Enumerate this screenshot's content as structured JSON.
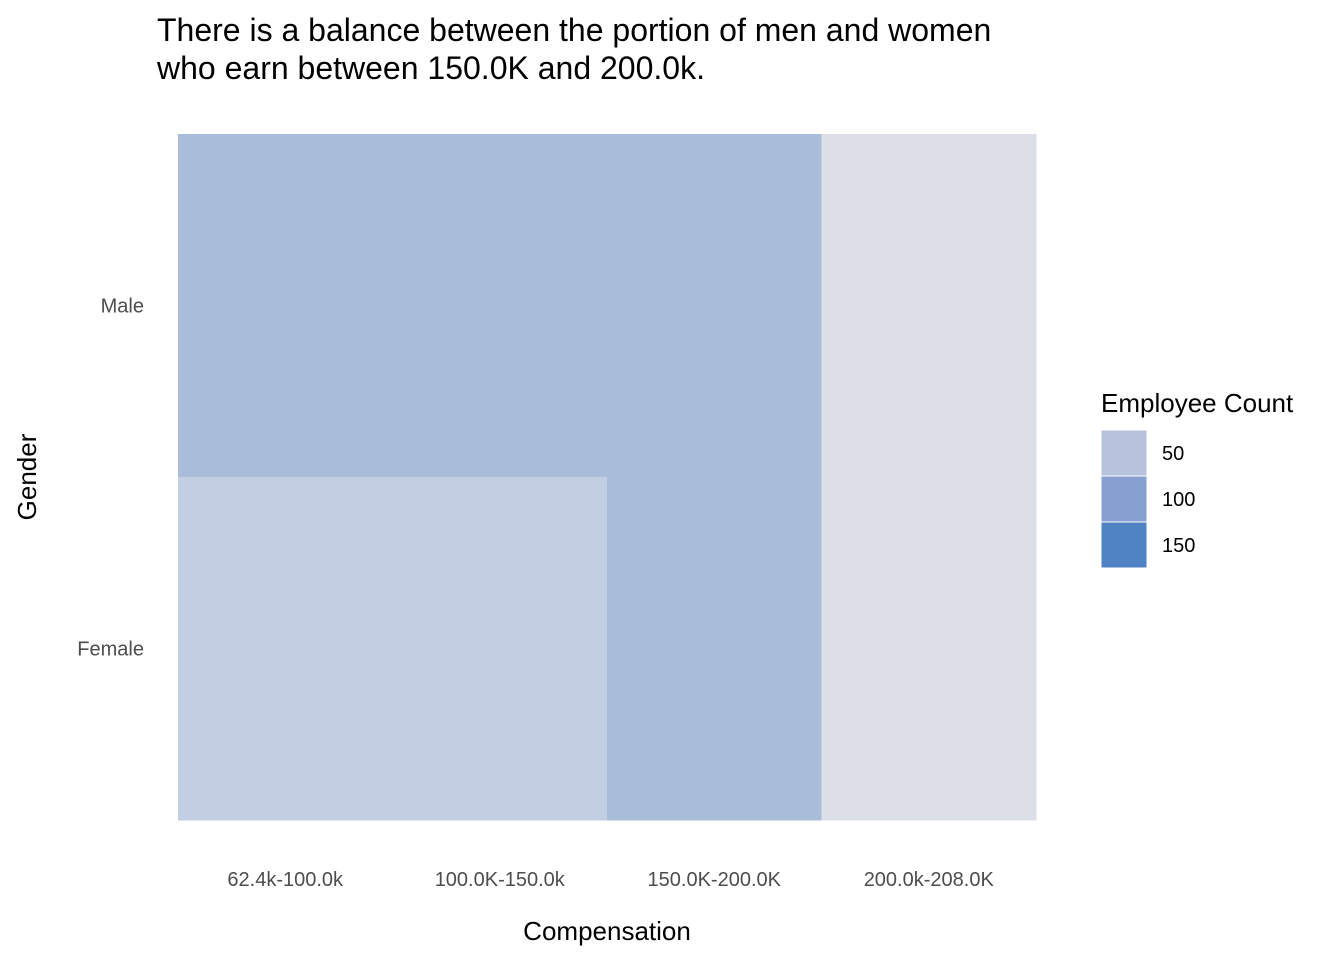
{
  "chart_data": {
    "type": "heatmap",
    "title": "There is a balance between the portion of men and women",
    "title_line2": "who earn between 150.0K and 200.0k.",
    "xlabel": "Compensation",
    "ylabel": "Gender",
    "x_categories": [
      "62.4k-100.0k",
      "100.0K-150.0k",
      "150.0K-200.0K",
      "200.0k-208.0K"
    ],
    "y_categories": [
      "Female",
      "Male"
    ],
    "cells": [
      {
        "x": "62.4k-100.0k",
        "y": "Male",
        "value": 75
      },
      {
        "x": "100.0K-150.0k",
        "y": "Male",
        "value": 75
      },
      {
        "x": "150.0K-200.0K",
        "y": "Male",
        "value": 75
      },
      {
        "x": "200.0k-208.0K",
        "y": "Male",
        "value": 25
      },
      {
        "x": "62.4k-100.0k",
        "y": "Female",
        "value": 50
      },
      {
        "x": "100.0K-150.0k",
        "y": "Female",
        "value": 50
      },
      {
        "x": "150.0K-200.0K",
        "y": "Female",
        "value": 75
      },
      {
        "x": "200.0k-208.0K",
        "y": "Female",
        "value": 25
      }
    ],
    "legend": {
      "title": "Employee Count",
      "position": "right",
      "breaks": [
        50,
        100,
        150
      ],
      "colors": [
        "#b7c2dd",
        "#87a0d0",
        "#4f83c4"
      ]
    },
    "color_scale": {
      "low_color": "#dcdfe7",
      "high_color": "#4f83c4",
      "domain": [
        25,
        162
      ]
    },
    "grid": false
  }
}
